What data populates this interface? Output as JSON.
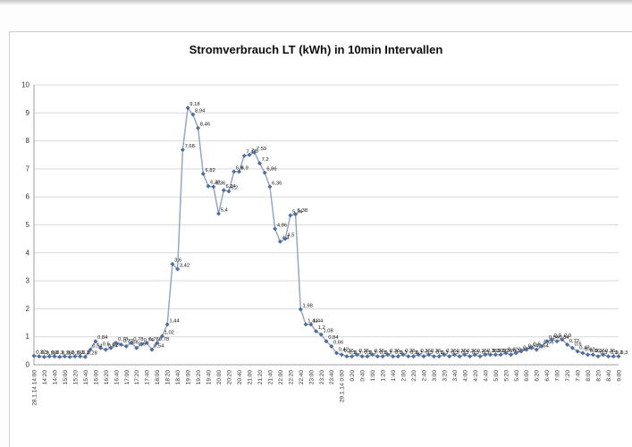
{
  "chart_data": {
    "type": "line",
    "title": "Stromverbrauch LT (kWh) in 10min Intervallen",
    "xlabel": "",
    "ylabel": "",
    "ylim": [
      0,
      10
    ],
    "y_ticks": [
      0,
      1,
      2,
      3,
      4,
      5,
      6,
      7,
      8,
      9,
      10
    ],
    "x_tick_every": 2,
    "grid": true,
    "legend": "none",
    "decimal_separator": ",",
    "line_color": "#97a6c4",
    "marker_color": "#4f6d9b",
    "grid_color": "#d9d9d9",
    "axis_color": "#9e9e9e",
    "x": [
      "28.1.14 14:00",
      "14:10",
      "14:20",
      "14:30",
      "14:40",
      "14:50",
      "15:00",
      "15:10",
      "15:20",
      "15:30",
      "15:40",
      "15:50",
      "16:00",
      "16:10",
      "16:20",
      "16:30",
      "16:40",
      "16:50",
      "17:00",
      "17:10",
      "17:20",
      "17:30",
      "17:40",
      "17:50",
      "18:00",
      "18:10",
      "18:20",
      "18:30",
      "18:40",
      "18:50",
      "19:00",
      "19:10",
      "19:20",
      "19:30",
      "19:40",
      "19:50",
      "20:00",
      "20:10",
      "20:20",
      "20:30",
      "20:40",
      "20:50",
      "21:00",
      "21:10",
      "21:20",
      "21:30",
      "21:40",
      "21:50",
      "22:00",
      "22:10",
      "22:20",
      "22:30",
      "22:40",
      "22:50",
      "23:00",
      "23:10",
      "23:20",
      "23:30",
      "23:40",
      "23:50",
      "29.1.14 0:00",
      "0:10",
      "0:20",
      "0:30",
      "0:40",
      "0:50",
      "1:00",
      "1:10",
      "1:20",
      "1:30",
      "1:40",
      "1:50",
      "2:00",
      "2:10",
      "2:20",
      "2:30",
      "2:40",
      "2:50",
      "3:00",
      "3:10",
      "3:20",
      "3:30",
      "3:40",
      "3:50",
      "4:00",
      "4:10",
      "4:20",
      "4:30",
      "4:40",
      "4:50",
      "5:00",
      "5:10",
      "5:20",
      "5:30",
      "5:40",
      "5:50",
      "6:00",
      "6:10",
      "6:20",
      "6:30",
      "6:40",
      "6:50",
      "7:00",
      "7:10",
      "7:20",
      "7:30",
      "7:40",
      "7:50",
      "8:00",
      "8:10",
      "8:20",
      "8:30",
      "8:40",
      "8:50",
      "9:00"
    ],
    "values": [
      0.32,
      0.3,
      0.28,
      0.3,
      0.3,
      0.28,
      0.3,
      0.28,
      0.3,
      0.3,
      0.28,
      0.54,
      0.84,
      0.6,
      0.54,
      0.6,
      0.78,
      0.72,
      0.66,
      0.78,
      0.6,
      0.74,
      0.78,
      0.54,
      0.78,
      1.02,
      1.44,
      3.6,
      3.42,
      7.68,
      9.18,
      8.94,
      8.46,
      6.82,
      6.38,
      6.36,
      5.4,
      6.24,
      6.2,
      6.9,
      6.9,
      7.47,
      7.5,
      7.59,
      7.2,
      6.86,
      6.36,
      4.86,
      4.4,
      4.5,
      5.34,
      5.38,
      1.98,
      1.44,
      1.44,
      1.2,
      1.08,
      0.84,
      0.66,
      0.42,
      0.36,
      0.3,
      0.3,
      0.36,
      0.3,
      0.3,
      0.36,
      0.3,
      0.3,
      0.36,
      0.3,
      0.3,
      0.36,
      0.3,
      0.3,
      0.36,
      0.3,
      0.36,
      0.3,
      0.3,
      0.36,
      0.3,
      0.36,
      0.3,
      0.36,
      0.3,
      0.36,
      0.3,
      0.36,
      0.36,
      0.36,
      0.36,
      0.42,
      0.36,
      0.42,
      0.48,
      0.54,
      0.6,
      0.54,
      0.66,
      0.84,
      0.9,
      0.84,
      0.9,
      0.72,
      0.6,
      0.48,
      0.42,
      0.36,
      0.36,
      0.3,
      0.36,
      0.3,
      0.3,
      0.3
    ]
  }
}
